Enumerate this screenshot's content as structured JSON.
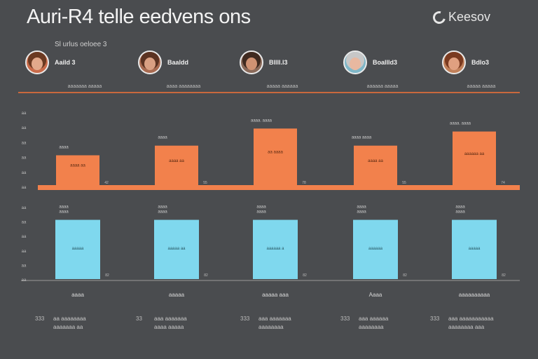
{
  "header": {
    "title": "Auri-R4 telle eedvens ons",
    "brand": "Keesov",
    "subtitle": "Sl urlus oeloee 3"
  },
  "people": [
    {
      "name": "Aaild 3",
      "skin": "#e2a98b",
      "hair": "#6b3a22",
      "bg": "#c96b4a"
    },
    {
      "name": "Baaldd",
      "skin": "#d9a083",
      "hair": "#5b3322",
      "bg": "#a86a50"
    },
    {
      "name": "Bllll.l3",
      "skin": "#cf9273",
      "hair": "#3f2a20",
      "bg": "#8a6a5a"
    },
    {
      "name": "Boallld3",
      "skin": "#e8b8a0",
      "hair": "#c7c7c7",
      "bg": "#7fb7c8"
    },
    {
      "name": "Bdlo3",
      "skin": "#e0a080",
      "hair": "#7a3a20",
      "bg": "#c0805a"
    }
  ],
  "columns": [
    {
      "header": "aaaaaaa aaaaa",
      "bottom_label": "aaaa",
      "note_tag": "333",
      "note_line1": "aa aaaaaaaa",
      "note_line2": "aaaaaaa aa"
    },
    {
      "header": "aaaa aaaaaaaa",
      "bottom_label": "aaaaa",
      "note_tag": "33",
      "note_line1": "aaa aaaaaaa",
      "note_line2": "aaaa aaaaa"
    },
    {
      "header": "aaaaa aaaaaa",
      "bottom_label": "aaaaa aaa",
      "note_tag": "333",
      "note_line1": "aaa aaaaaaa",
      "note_line2": "aaaaaaaa"
    },
    {
      "header": "aaaaaa aaaaa",
      "bottom_label": "Aaaa",
      "note_tag": "333",
      "note_line1": "aaa aaaaaa",
      "note_line2": "aaaaaaaa"
    },
    {
      "header": "aaaaa aaaaa",
      "bottom_label": "aaaaaaaaaa",
      "note_tag": "333",
      "note_line1": "aaa aaaaaaaaaaa",
      "note_line2": "aaaaaaaa aaa"
    }
  ],
  "chart_data": [
    {
      "type": "bar",
      "categories": [
        "Aaild 3",
        "Baaldd",
        "Bllll.l3",
        "Boallld3",
        "Bdlo3"
      ],
      "values": [
        42,
        55,
        78,
        55,
        74
      ],
      "ylim": [
        0,
        100
      ],
      "top_labels": [
        "aaaa",
        "aaaa",
        "aaaa. aaaa",
        "aaaa aaaa",
        "aaaa. aaaa"
      ],
      "bar_labels": [
        "aaaa aa",
        "aaaa aa",
        "aa aaaa",
        "aaaa aa",
        "aaaaaa aa"
      ],
      "y_ticks": [
        "aa",
        "aa",
        "aa",
        "aa",
        "aa",
        "aa"
      ],
      "color": "#f2814c"
    },
    {
      "type": "bar",
      "categories": [
        "Aaild 3",
        "Baaldd",
        "Bllll.l3",
        "Boallld3",
        "Bdlo3"
      ],
      "values": [
        82,
        82,
        82,
        82,
        82
      ],
      "ylim": [
        0,
        100
      ],
      "top_labels": [
        "aaaa\naaaa",
        "aaaa\naaaa",
        "aaaa\naaaa",
        "aaaa\naaaa",
        "aaaa\naaaa"
      ],
      "bar_labels": [
        "aaaaa",
        "aaaaa aa",
        "aaaaaa a",
        "aaaaaa",
        "aaaaa"
      ],
      "y_ticks": [
        "aa",
        "aa",
        "aa",
        "aa",
        "aa",
        "aa"
      ],
      "color": "#7fd8ee"
    }
  ]
}
